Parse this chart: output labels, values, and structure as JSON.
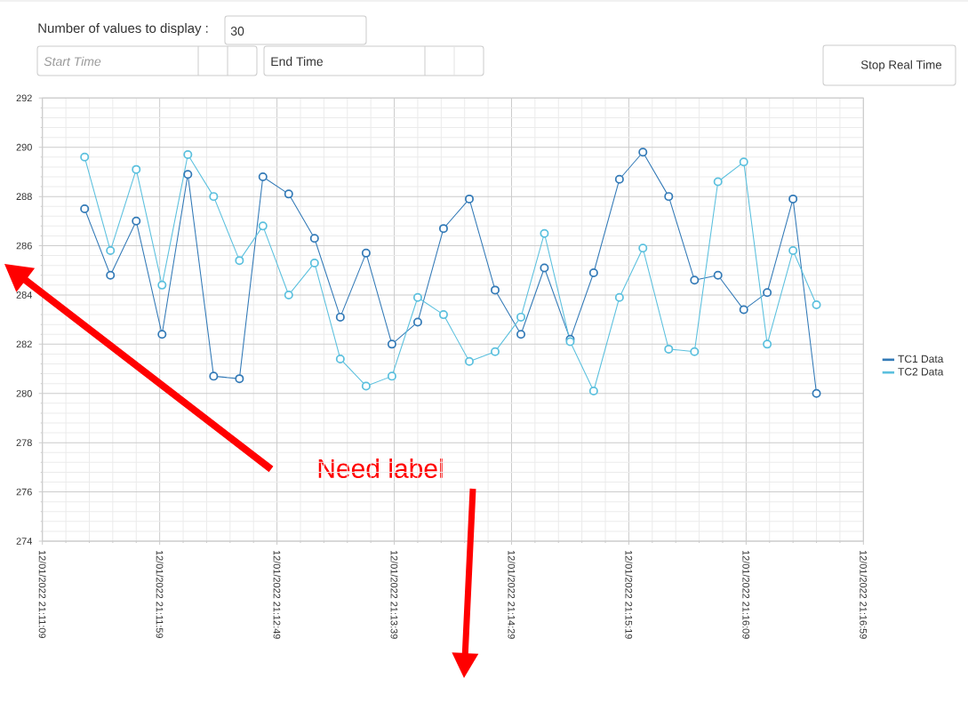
{
  "chart_data": {
    "type": "line",
    "x": [
      "2022-12-01T21:11:27",
      "2022-12-01T21:11:38",
      "2022-12-01T21:11:49",
      "2022-12-01T21:12:00",
      "2022-12-01T21:12:11",
      "2022-12-01T21:12:22",
      "2022-12-01T21:12:33",
      "2022-12-01T21:12:43",
      "2022-12-01T21:12:54",
      "2022-12-01T21:13:05",
      "2022-12-01T21:13:16",
      "2022-12-01T21:13:27",
      "2022-12-01T21:13:38",
      "2022-12-01T21:13:49",
      "2022-12-01T21:14:00",
      "2022-12-01T21:14:11",
      "2022-12-01T21:14:22",
      "2022-12-01T21:14:33",
      "2022-12-01T21:14:43",
      "2022-12-01T21:14:54",
      "2022-12-01T21:15:04",
      "2022-12-01T21:15:15",
      "2022-12-01T21:15:25",
      "2022-12-01T21:15:36",
      "2022-12-01T21:15:47",
      "2022-12-01T21:15:57",
      "2022-12-01T21:16:08",
      "2022-12-01T21:16:18",
      "2022-12-01T21:16:29",
      "2022-12-01T21:16:39"
    ],
    "xlim": [
      "2022-12-01T21:11:09",
      "2022-12-01T21:16:59"
    ],
    "xticks": [
      {
        "value": "2022-12-01T21:11:09",
        "label": "12/01/2022 21:11:09"
      },
      {
        "value": "2022-12-01T21:11:59",
        "label": "12/01/2022 21:11:59"
      },
      {
        "value": "2022-12-01T21:12:49",
        "label": "12/01/2022 21:12:49"
      },
      {
        "value": "2022-12-01T21:13:39",
        "label": "12/01/2022 21:13:39"
      },
      {
        "value": "2022-12-01T21:14:29",
        "label": "12/01/2022 21:14:29"
      },
      {
        "value": "2022-12-01T21:15:19",
        "label": "12/01/2022 21:15:19"
      },
      {
        "value": "2022-12-01T21:16:09",
        "label": "12/01/2022 21:16:09"
      },
      {
        "value": "2022-12-01T21:16:59",
        "label": "12/01/2022 21:16:59"
      }
    ],
    "ylim": [
      274,
      292
    ],
    "yticks": [
      274,
      276,
      278,
      280,
      282,
      284,
      286,
      288,
      290,
      292
    ],
    "series": [
      {
        "name": "TC1 Data",
        "color": "#337ab7",
        "values": [
          287.5,
          284.8,
          287.0,
          282.4,
          288.9,
          280.7,
          280.6,
          288.8,
          288.1,
          286.3,
          283.1,
          285.7,
          282.0,
          282.9,
          286.7,
          287.9,
          284.2,
          282.4,
          285.1,
          282.2,
          284.9,
          288.7,
          289.8,
          288.0,
          284.6,
          284.8,
          283.4,
          284.1,
          287.9,
          280.0
        ]
      },
      {
        "name": "TC2 Data",
        "color": "#5bc0de",
        "values": [
          289.6,
          285.8,
          289.1,
          284.4,
          289.7,
          288.0,
          285.4,
          286.8,
          284.0,
          285.3,
          281.4,
          280.3,
          280.7,
          283.9,
          283.2,
          281.3,
          281.7,
          283.1,
          286.5,
          282.1,
          280.1,
          283.9,
          285.9,
          281.8,
          281.7,
          288.6,
          289.4,
          282.0,
          285.8,
          283.6
        ]
      }
    ],
    "grid": true,
    "legend": "right",
    "marker": "circle",
    "line_style": "solid",
    "annotations": [
      "Number of values to display :",
      "30",
      "Start Time",
      "End Time",
      "Stop Real Time",
      "Need label"
    ]
  }
}
